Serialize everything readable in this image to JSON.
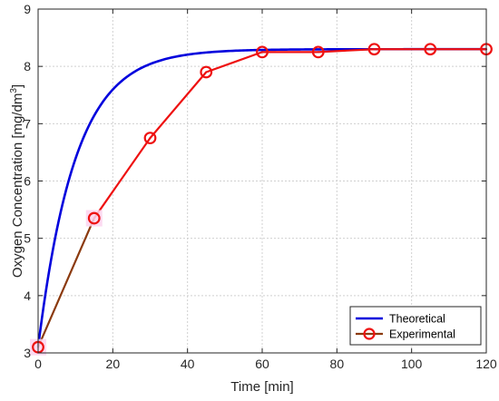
{
  "chart_data": {
    "type": "line",
    "xlabel": "Time [min]",
    "ylabel_main": "Oxygen Concentration [mg/dm",
    "ylabel_sup": "3",
    "ylabel_tail": "]",
    "xlim": [
      0,
      120
    ],
    "ylim": [
      3,
      9
    ],
    "xticks": [
      0,
      20,
      40,
      60,
      80,
      100,
      120
    ],
    "yticks": [
      3,
      4,
      5,
      6,
      7,
      8,
      9
    ],
    "grid": true,
    "legend_position": "bottom-right",
    "series": [
      {
        "name": "Theoretical",
        "color": "#0000dd",
        "style": "line",
        "model": {
          "c0": 3.1,
          "cs": 8.3,
          "k_per_min": 0.1
        }
      },
      {
        "name": "Experimental",
        "color": "#ee1111",
        "segment_color": "#8b3a0e",
        "style": "line-marker",
        "x": [
          0,
          15,
          30,
          45,
          60,
          75,
          90,
          105,
          120
        ],
        "y": [
          3.1,
          5.35,
          6.75,
          7.9,
          8.25,
          8.25,
          8.3,
          8.3,
          8.3
        ]
      }
    ]
  }
}
